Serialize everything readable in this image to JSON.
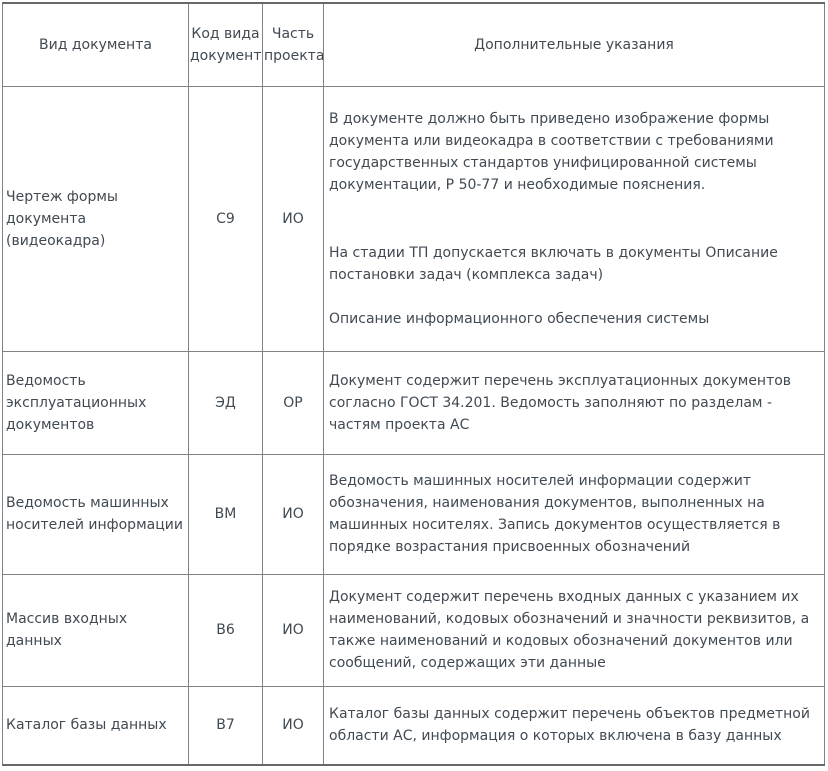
{
  "theme": {
    "text_color": "#414a53",
    "border_color": "#808285",
    "outer_border_color": "#67696b",
    "bg_color": "#ffffff"
  },
  "table": {
    "headers": [
      {
        "label": "Вид документа"
      },
      {
        "label": "Код вида документа"
      },
      {
        "label": "Часть проекта"
      },
      {
        "label": "Дополнительные указания"
      }
    ],
    "rows": [
      {
        "doc_type": "Чертеж формы документа (видеокадра)",
        "code": "С9",
        "part": "ИО",
        "notes": [
          "В документе должно быть приведено изображение формы документа или видеокадра в соответствии с требованиями государственных стандартов унифицированной системы документации, Р 50-77 и необходимые пояснения.",
          "На стадии ТП допускается включать в документы Описание постановки задач (комплекса задач)",
          "Описание информационного обеспечения системы"
        ]
      },
      {
        "doc_type": "Ведомость эксплуатационных документов",
        "code": "ЭД",
        "part": "ОР",
        "notes": [
          "Документ содержит перечень эксплуатационных документов согласно ГОСТ 34.201. Ведомость заполняют по разделам - частям проекта АС"
        ]
      },
      {
        "doc_type": "Ведомость машинных носителей информации",
        "code": "ВМ",
        "part": "ИО",
        "notes": [
          "Ведомость машинных носителей информации содержит обозначения, наименования документов, выполненных на машинных носителях. Запись документов осуществляется в порядке возрастания присвоенных обозначений"
        ]
      },
      {
        "doc_type": "Массив входных данных",
        "code": "В6",
        "part": "ИО",
        "notes": [
          "Документ содержит перечень входных данных с указанием их наименований, кодовых обозначений и значности реквизитов, а также наименований и кодовых обозначений документов или сообщений, содержащих эти данные"
        ]
      },
      {
        "doc_type": "Каталог базы данных",
        "code": "В7",
        "part": "ИО",
        "notes": [
          "Каталог базы данных содержит перечень объектов предметной области АС, информация о которых включена в базу данных"
        ]
      }
    ]
  }
}
